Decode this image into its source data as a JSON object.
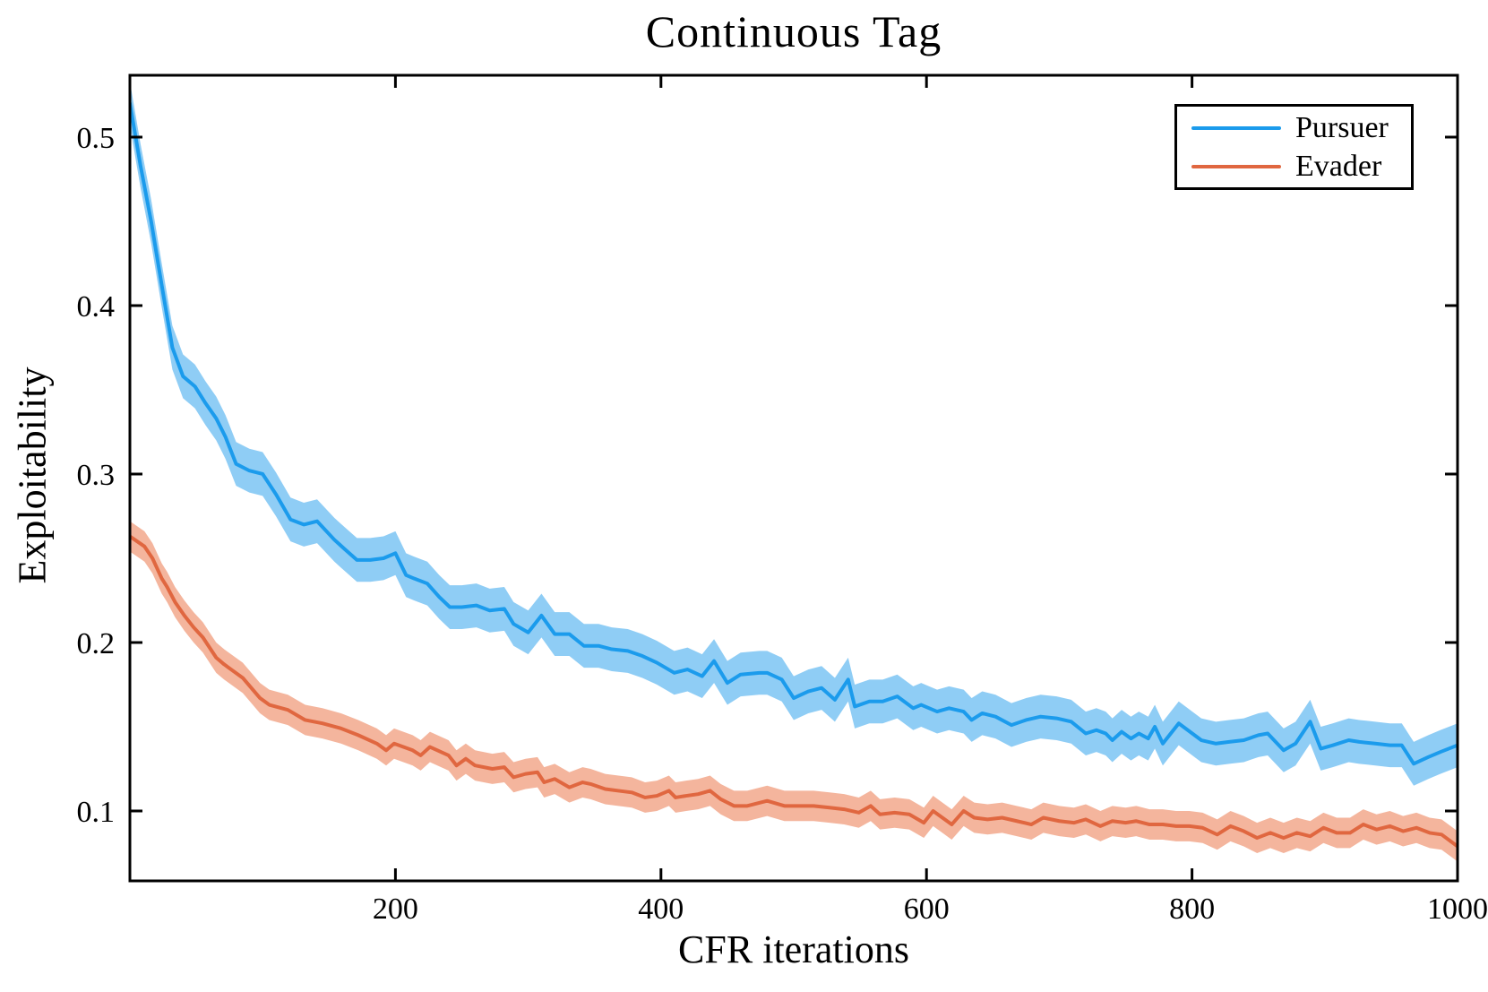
{
  "title": "Continuous Tag",
  "chart_data": {
    "type": "line",
    "title": "Continuous Tag",
    "xlabel": "CFR iterations",
    "ylabel": "Exploitability",
    "xlim": [
      0,
      1000
    ],
    "ylim": [
      0.0585,
      0.5367
    ],
    "xticks": [
      200,
      400,
      600,
      800,
      1000
    ],
    "yticks": [
      0.1,
      0.2,
      0.3,
      0.4,
      0.5
    ],
    "grid": false,
    "frame": "box-with-mirrored-ticks",
    "legend_position": "top-right",
    "series": [
      {
        "name": "Pursuer",
        "color": "#1B9BEC",
        "band_color": "#8FCDF5",
        "band_halfwidth": 0.013,
        "points": [
          [
            0,
            0.52
          ],
          [
            8,
            0.483
          ],
          [
            16,
            0.45
          ],
          [
            24,
            0.412
          ],
          [
            32,
            0.375
          ],
          [
            40,
            0.358
          ],
          [
            49,
            0.352
          ],
          [
            57,
            0.342
          ],
          [
            65,
            0.333
          ],
          [
            72,
            0.322
          ],
          [
            80,
            0.306
          ],
          [
            90,
            0.302
          ],
          [
            100,
            0.3
          ],
          [
            110,
            0.288
          ],
          [
            121,
            0.273
          ],
          [
            131,
            0.27
          ],
          [
            141,
            0.272
          ],
          [
            154,
            0.261
          ],
          [
            161,
            0.256
          ],
          [
            171,
            0.249
          ],
          [
            181,
            0.249
          ],
          [
            191,
            0.25
          ],
          [
            200,
            0.253
          ],
          [
            208,
            0.24
          ],
          [
            214,
            0.238
          ],
          [
            224,
            0.235
          ],
          [
            233,
            0.227
          ],
          [
            241,
            0.221
          ],
          [
            250,
            0.221
          ],
          [
            261,
            0.222
          ],
          [
            271,
            0.219
          ],
          [
            282,
            0.22
          ],
          [
            289,
            0.211
          ],
          [
            300,
            0.206
          ],
          [
            310,
            0.216
          ],
          [
            320,
            0.205
          ],
          [
            331,
            0.205
          ],
          [
            342,
            0.198
          ],
          [
            353,
            0.198
          ],
          [
            363,
            0.196
          ],
          [
            375,
            0.195
          ],
          [
            386,
            0.192
          ],
          [
            397,
            0.188
          ],
          [
            410,
            0.182
          ],
          [
            420,
            0.184
          ],
          [
            431,
            0.18
          ],
          [
            440,
            0.189
          ],
          [
            450,
            0.176
          ],
          [
            460,
            0.181
          ],
          [
            474,
            0.182
          ],
          [
            480,
            0.182
          ],
          [
            491,
            0.178
          ],
          [
            500,
            0.167
          ],
          [
            511,
            0.171
          ],
          [
            521,
            0.173
          ],
          [
            531,
            0.166
          ],
          [
            541,
            0.178
          ],
          [
            546,
            0.162
          ],
          [
            557,
            0.165
          ],
          [
            567,
            0.165
          ],
          [
            578,
            0.168
          ],
          [
            590,
            0.161
          ],
          [
            596,
            0.163
          ],
          [
            608,
            0.159
          ],
          [
            617,
            0.161
          ],
          [
            628,
            0.159
          ],
          [
            634,
            0.154
          ],
          [
            642,
            0.158
          ],
          [
            652,
            0.156
          ],
          [
            664,
            0.151
          ],
          [
            675,
            0.154
          ],
          [
            686,
            0.156
          ],
          [
            698,
            0.155
          ],
          [
            709,
            0.153
          ],
          [
            720,
            0.146
          ],
          [
            728,
            0.148
          ],
          [
            735,
            0.146
          ],
          [
            740,
            0.142
          ],
          [
            747,
            0.147
          ],
          [
            754,
            0.143
          ],
          [
            760,
            0.146
          ],
          [
            767,
            0.143
          ],
          [
            772,
            0.15
          ],
          [
            778,
            0.14
          ],
          [
            790,
            0.152
          ],
          [
            807,
            0.142
          ],
          [
            818,
            0.14
          ],
          [
            828,
            0.141
          ],
          [
            839,
            0.142
          ],
          [
            850,
            0.145
          ],
          [
            857,
            0.146
          ],
          [
            869,
            0.136
          ],
          [
            878,
            0.14
          ],
          [
            889,
            0.153
          ],
          [
            897,
            0.137
          ],
          [
            906,
            0.139
          ],
          [
            918,
            0.142
          ],
          [
            926,
            0.141
          ],
          [
            938,
            0.14
          ],
          [
            949,
            0.139
          ],
          [
            958,
            0.139
          ],
          [
            967,
            0.128
          ],
          [
            978,
            0.132
          ],
          [
            987,
            0.135
          ],
          [
            1000,
            0.139
          ]
        ]
      },
      {
        "name": "Evader",
        "color": "#E06740",
        "band_color": "#F4B59D",
        "band_halfwidth": 0.009,
        "points": [
          [
            0,
            0.263
          ],
          [
            11,
            0.257
          ],
          [
            17,
            0.25
          ],
          [
            24,
            0.238
          ],
          [
            28,
            0.233
          ],
          [
            34,
            0.224
          ],
          [
            41,
            0.216
          ],
          [
            48,
            0.209
          ],
          [
            55,
            0.203
          ],
          [
            65,
            0.191
          ],
          [
            71,
            0.187
          ],
          [
            85,
            0.179
          ],
          [
            98,
            0.167
          ],
          [
            105,
            0.163
          ],
          [
            119,
            0.16
          ],
          [
            132,
            0.154
          ],
          [
            145,
            0.152
          ],
          [
            159,
            0.149
          ],
          [
            172,
            0.145
          ],
          [
            186,
            0.14
          ],
          [
            193,
            0.136
          ],
          [
            199,
            0.14
          ],
          [
            213,
            0.136
          ],
          [
            219,
            0.133
          ],
          [
            226,
            0.138
          ],
          [
            240,
            0.133
          ],
          [
            246,
            0.127
          ],
          [
            253,
            0.131
          ],
          [
            260,
            0.127
          ],
          [
            273,
            0.125
          ],
          [
            282,
            0.126
          ],
          [
            289,
            0.12
          ],
          [
            298,
            0.122
          ],
          [
            307,
            0.123
          ],
          [
            312,
            0.117
          ],
          [
            320,
            0.119
          ],
          [
            331,
            0.114
          ],
          [
            341,
            0.117
          ],
          [
            347,
            0.116
          ],
          [
            358,
            0.113
          ],
          [
            368,
            0.112
          ],
          [
            378,
            0.111
          ],
          [
            388,
            0.108
          ],
          [
            397,
            0.109
          ],
          [
            406,
            0.112
          ],
          [
            411,
            0.108
          ],
          [
            419,
            0.109
          ],
          [
            428,
            0.11
          ],
          [
            437,
            0.112
          ],
          [
            445,
            0.107
          ],
          [
            455,
            0.103
          ],
          [
            465,
            0.103
          ],
          [
            480,
            0.106
          ],
          [
            493,
            0.103
          ],
          [
            504,
            0.103
          ],
          [
            515,
            0.103
          ],
          [
            527,
            0.102
          ],
          [
            538,
            0.101
          ],
          [
            549,
            0.099
          ],
          [
            558,
            0.103
          ],
          [
            565,
            0.098
          ],
          [
            576,
            0.099
          ],
          [
            587,
            0.098
          ],
          [
            598,
            0.093
          ],
          [
            605,
            0.1
          ],
          [
            612,
            0.096
          ],
          [
            619,
            0.092
          ],
          [
            628,
            0.1
          ],
          [
            636,
            0.096
          ],
          [
            646,
            0.095
          ],
          [
            657,
            0.096
          ],
          [
            668,
            0.094
          ],
          [
            679,
            0.092
          ],
          [
            688,
            0.096
          ],
          [
            700,
            0.094
          ],
          [
            711,
            0.093
          ],
          [
            720,
            0.095
          ],
          [
            731,
            0.091
          ],
          [
            740,
            0.094
          ],
          [
            750,
            0.093
          ],
          [
            758,
            0.094
          ],
          [
            768,
            0.092
          ],
          [
            778,
            0.092
          ],
          [
            788,
            0.091
          ],
          [
            798,
            0.091
          ],
          [
            808,
            0.09
          ],
          [
            819,
            0.086
          ],
          [
            829,
            0.091
          ],
          [
            839,
            0.088
          ],
          [
            849,
            0.084
          ],
          [
            859,
            0.087
          ],
          [
            869,
            0.084
          ],
          [
            879,
            0.087
          ],
          [
            889,
            0.085
          ],
          [
            899,
            0.09
          ],
          [
            909,
            0.087
          ],
          [
            919,
            0.087
          ],
          [
            929,
            0.092
          ],
          [
            939,
            0.089
          ],
          [
            949,
            0.091
          ],
          [
            959,
            0.088
          ],
          [
            969,
            0.09
          ],
          [
            979,
            0.087
          ],
          [
            988,
            0.086
          ],
          [
            1000,
            0.079
          ]
        ]
      }
    ]
  },
  "style": {
    "spine_color": "#000000",
    "background": "#ffffff",
    "tick_label_color": "#000000"
  }
}
